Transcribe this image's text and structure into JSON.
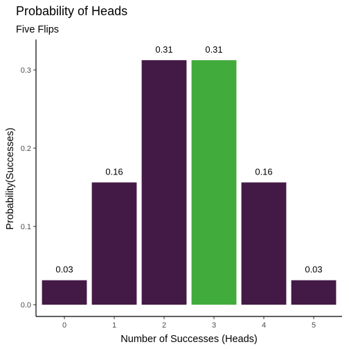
{
  "chart_data": {
    "type": "bar",
    "title": "Probability of Heads",
    "subtitle": "Five Flips",
    "xlabel": "Number of Successes (Heads)",
    "ylabel": "Probability(Successes)",
    "categories": [
      "0",
      "1",
      "2",
      "3",
      "4",
      "5"
    ],
    "values": [
      0.03125,
      0.15625,
      0.3125,
      0.3125,
      0.15625,
      0.03125
    ],
    "data_labels": [
      "0.03",
      "0.16",
      "0.31",
      "0.31",
      "0.16",
      "0.03"
    ],
    "yticks": [
      0.0,
      0.1,
      0.2,
      0.3
    ],
    "ytick_labels": [
      "0.0",
      "0.1",
      "0.2",
      "0.3"
    ],
    "ylim": [
      0,
      0.33
    ],
    "grid": false,
    "highlight_index": 3,
    "colors": {
      "bar": "#431a46",
      "highlight": "#41ab3c",
      "axis": "#000000"
    }
  }
}
